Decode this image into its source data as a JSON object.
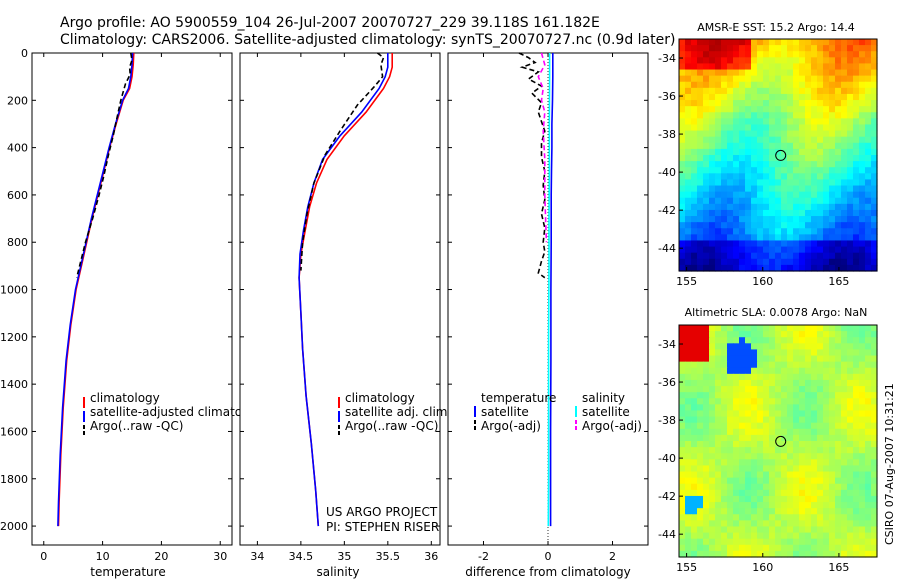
{
  "header": {
    "line1": "Argo profile: AO 5900559_104 26-Jul-2007 20070727_229 39.118S 161.182E",
    "line2": "Climatology: CARS2006. Satellite-adjusted climatology: synTS_20070727.nc (0.9d later)"
  },
  "chart_data": [
    {
      "type": "line",
      "id": "temperature",
      "xlabel": "temperature",
      "xlim": [
        -2,
        32
      ],
      "ylim": [
        0,
        2080
      ],
      "xticks": [
        0,
        10,
        20,
        30
      ],
      "yticks": [
        0,
        200,
        400,
        600,
        800,
        1000,
        1200,
        1400,
        1600,
        1800,
        2000
      ],
      "legend": [
        "climatology",
        "satellite-adjusted climatology",
        "Argo(..raw -QC)"
      ],
      "series": [
        {
          "name": "climatology",
          "color": "#ff0000",
          "dash": "",
          "x": [
            15.3,
            15.2,
            15.0,
            14.6,
            13.5,
            12.3,
            11.2,
            10.2,
            9.2,
            8.2,
            7.3,
            6.4,
            5.5,
            4.6,
            3.9,
            3.3,
            2.9,
            2.6,
            2.5
          ],
          "y": [
            0,
            50,
            100,
            150,
            200,
            300,
            400,
            500,
            600,
            700,
            800,
            900,
            1000,
            1150,
            1300,
            1500,
            1700,
            1900,
            2000
          ]
        },
        {
          "name": "satellite-adjusted climatology",
          "color": "#0000ff",
          "dash": "",
          "x": [
            15.1,
            15.0,
            14.8,
            14.4,
            13.4,
            12.2,
            11.1,
            10.1,
            9.1,
            8.1,
            7.2,
            6.3,
            5.4,
            4.5,
            3.8,
            3.2,
            2.8,
            2.5,
            2.4
          ],
          "y": [
            0,
            50,
            100,
            150,
            200,
            300,
            400,
            500,
            600,
            700,
            800,
            900,
            1000,
            1150,
            1300,
            1500,
            1700,
            1900,
            2000
          ]
        },
        {
          "name": "Argo(..raw -QC)",
          "color": "#000000",
          "dash": "5,3",
          "x": [
            14.8,
            15.0,
            14.6,
            14.7,
            13.9,
            13.1,
            12.4,
            11.8,
            11.0,
            10.2,
            9.4,
            8.3,
            7.1,
            6.3,
            5.6
          ],
          "y": [
            0,
            30,
            60,
            90,
            130,
            200,
            280,
            350,
            430,
            520,
            600,
            700,
            800,
            880,
            950
          ]
        }
      ]
    },
    {
      "type": "line",
      "id": "salinity",
      "xlabel": "salinity",
      "xlim": [
        33.8,
        36.1
      ],
      "ylim": [
        0,
        2080
      ],
      "xticks": [
        34,
        34.5,
        35,
        35.5,
        36
      ],
      "xticklabels": [
        "34",
        "34.5",
        "35",
        "35.5",
        "36"
      ],
      "legend": [
        "climatology",
        "satellite adj. clim.",
        "Argo(..raw -QC)"
      ],
      "annotation": [
        "US ARGO PROJECT",
        "PI: STEPHEN RISER"
      ],
      "series": [
        {
          "name": "climatology",
          "color": "#ff0000",
          "dash": "",
          "x": [
            35.55,
            35.55,
            35.52,
            35.45,
            35.25,
            35.0,
            34.8,
            34.68,
            34.6,
            34.55,
            34.5,
            34.48,
            34.5,
            34.52,
            34.56,
            34.62,
            34.67,
            34.7
          ],
          "y": [
            0,
            60,
            100,
            150,
            250,
            350,
            450,
            550,
            650,
            750,
            850,
            950,
            1100,
            1250,
            1450,
            1650,
            1850,
            2000
          ]
        },
        {
          "name": "satellite adj. clim.",
          "color": "#0000ff",
          "dash": "",
          "x": [
            35.5,
            35.5,
            35.47,
            35.4,
            35.2,
            34.95,
            34.75,
            34.65,
            34.58,
            34.53,
            34.49,
            34.48,
            34.5,
            34.52,
            34.56,
            34.62,
            34.67,
            34.7
          ],
          "y": [
            0,
            60,
            100,
            150,
            250,
            350,
            450,
            550,
            650,
            750,
            850,
            950,
            1100,
            1250,
            1450,
            1650,
            1850,
            2000
          ]
        },
        {
          "name": "Argo(..raw -QC)",
          "color": "#000000",
          "dash": "5,3",
          "x": [
            35.38,
            35.45,
            35.42,
            35.44,
            35.35,
            35.15,
            34.95,
            34.78,
            34.65,
            34.57,
            34.52,
            34.5
          ],
          "y": [
            0,
            20,
            50,
            100,
            140,
            220,
            330,
            430,
            550,
            680,
            800,
            920
          ]
        }
      ]
    },
    {
      "type": "line",
      "id": "difference",
      "xlabel": "difference from climatology",
      "xlim": [
        -3.1,
        3.1
      ],
      "ylim": [
        0,
        2080
      ],
      "xticks": [
        -2,
        0,
        2
      ],
      "legend_headers": [
        "temperature",
        "salinity"
      ],
      "legend": [
        "satellite",
        "Argo(-adj)",
        "satellite",
        "Argo(-adj)"
      ],
      "series": [
        {
          "name": "temperature satellite",
          "color": "#0000ff",
          "dash": "",
          "x": [
            0.15,
            0.15,
            0.14,
            0.12,
            0.12,
            0.11,
            0.1,
            0.1,
            0.09,
            0.09,
            0.08,
            0.08
          ],
          "y": [
            0,
            100,
            200,
            300,
            400,
            500,
            600,
            800,
            1000,
            1300,
            1600,
            2000
          ]
        },
        {
          "name": "temperature Argo(-adj)",
          "color": "#000000",
          "dash": "5,3",
          "x": [
            -0.9,
            -0.6,
            -0.4,
            -0.8,
            -0.3,
            -0.6,
            -0.2,
            -0.5,
            -0.2,
            -0.3,
            -0.2,
            -0.1,
            -0.2,
            -0.2,
            -0.1,
            -0.15,
            -0.1,
            -0.2,
            -0.1,
            -0.15,
            -0.1,
            -0.2,
            -0.3,
            -0.1
          ],
          "y": [
            0,
            20,
            40,
            60,
            80,
            110,
            140,
            170,
            210,
            250,
            290,
            330,
            380,
            440,
            500,
            560,
            620,
            680,
            740,
            800,
            840,
            880,
            930,
            950
          ]
        },
        {
          "name": "salinity satellite",
          "color": "#00ffff",
          "dash": "",
          "x": [
            0.05,
            0.05,
            0.04,
            0.04,
            0.03,
            0.03,
            0.02,
            0.02,
            0.02,
            0.01
          ],
          "y": [
            0,
            100,
            300,
            500,
            700,
            900,
            1200,
            1500,
            1800,
            2000
          ]
        },
        {
          "name": "salinity Argo(-adj)",
          "color": "#ff00ff",
          "dash": "5,3",
          "x": [
            -0.2,
            -0.1,
            -0.3,
            -0.15,
            -0.2,
            -0.1,
            -0.15,
            -0.1,
            -0.1,
            -0.05
          ],
          "y": [
            0,
            50,
            100,
            150,
            200,
            250,
            330,
            450,
            600,
            800
          ]
        }
      ]
    },
    {
      "type": "heatmap",
      "id": "sst-map",
      "title": "AMSR-E SST: 15.2 Argo: 14.4",
      "xlim": [
        154.5,
        167.5
      ],
      "ylim": [
        -45.2,
        -33
      ],
      "xticks": [
        155,
        160,
        165
      ],
      "yticks": [
        -34,
        -36,
        -38,
        -40,
        -42,
        -44
      ],
      "marker": {
        "lon": 161.18,
        "lat": -39.12
      }
    },
    {
      "type": "heatmap",
      "id": "sla-map",
      "title": "Altimetric SLA: 0.0078 Argo: NaN",
      "xlim": [
        154.5,
        167.5
      ],
      "ylim": [
        -45.2,
        -33
      ],
      "xticks": [
        155,
        160,
        165
      ],
      "yticks": [
        -34,
        -36,
        -38,
        -40,
        -42,
        -44
      ],
      "marker": {
        "lon": 161.18,
        "lat": -39.12
      }
    }
  ],
  "footer": {
    "stamp": "CSIRO 07-Aug-2007 10:31:21"
  }
}
